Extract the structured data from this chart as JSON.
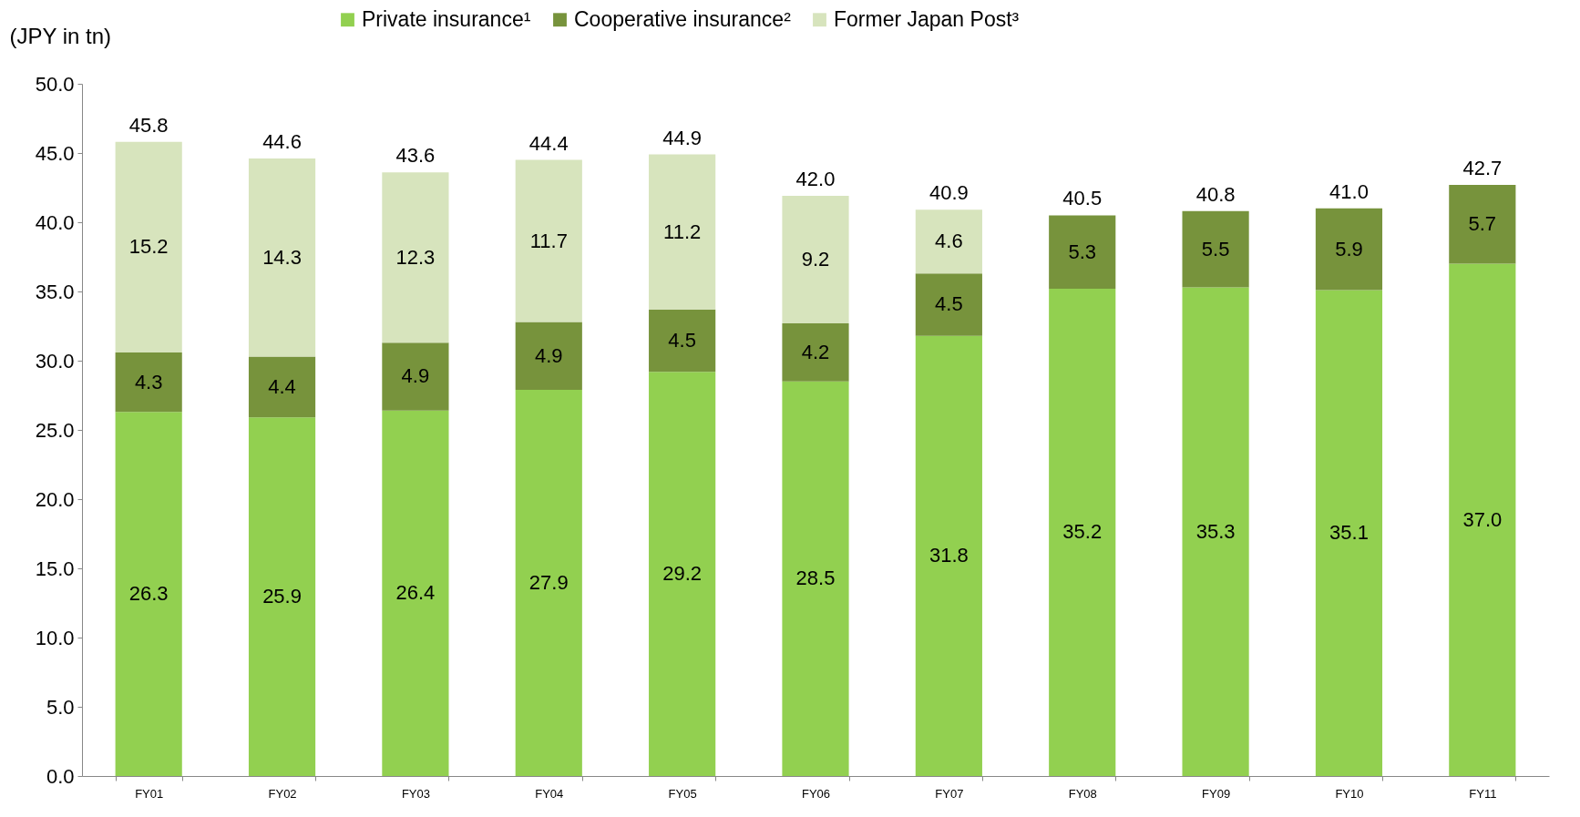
{
  "chart_data": {
    "type": "bar",
    "stacked": true,
    "ylabel": "(JPY in tn)",
    "categories": [
      "FY01",
      "FY02",
      "FY03",
      "FY04",
      "FY05",
      "FY06",
      "FY07",
      "FY08",
      "FY09",
      "FY10",
      "FY11"
    ],
    "series": [
      {
        "name": "Private insurance¹",
        "color": "#92d050",
        "values": [
          26.3,
          25.9,
          26.4,
          27.9,
          29.2,
          28.5,
          31.8,
          35.2,
          35.3,
          35.1,
          37.0
        ],
        "value_labels": [
          "26.3",
          "25.9",
          "26.4",
          "27.9",
          "29.2",
          "28.5",
          "31.8",
          "35.2",
          "35.3",
          "35.1",
          "37.0"
        ]
      },
      {
        "name": "Cooperative insurance²",
        "color": "#77933c",
        "values": [
          4.3,
          4.4,
          4.9,
          4.9,
          4.5,
          4.2,
          4.5,
          5.3,
          5.5,
          5.9,
          5.7
        ],
        "value_labels": [
          "4.3",
          "4.4",
          "4.9",
          "4.9",
          "4.5",
          "4.2",
          "4.5",
          "5.3",
          "5.5",
          "5.9",
          "5.7"
        ]
      },
      {
        "name": "Former Japan Post³",
        "color": "#d7e4bd",
        "values": [
          15.2,
          14.3,
          12.3,
          11.7,
          11.2,
          9.2,
          4.6,
          null,
          null,
          null,
          null
        ],
        "value_labels": [
          "15.2",
          "14.3",
          "12.3",
          "11.7",
          "11.2",
          "9.2",
          "4.6",
          null,
          null,
          null,
          null
        ]
      }
    ],
    "totals": [
      "45.8",
      "44.6",
      "43.6",
      "44.4",
      "44.9",
      "42.0",
      "40.9",
      "40.5",
      "40.8",
      "41.0",
      "42.7"
    ],
    "legend": "top",
    "grid": false,
    "ylim": [
      0,
      50
    ],
    "yticks": [
      {
        "value": 0,
        "label": "0.0"
      },
      {
        "value": 5,
        "label": "5.0"
      },
      {
        "value": 10,
        "label": "10.0"
      },
      {
        "value": 15,
        "label": "15.0"
      },
      {
        "value": 20,
        "label": "20.0"
      },
      {
        "value": 25,
        "label": "25.0"
      },
      {
        "value": 30,
        "label": "30.0"
      },
      {
        "value": 35,
        "label": "35.0"
      },
      {
        "value": 40,
        "label": "40.0"
      },
      {
        "value": 45,
        "label": "45.0"
      },
      {
        "value": 50,
        "label": "50.0"
      }
    ]
  }
}
